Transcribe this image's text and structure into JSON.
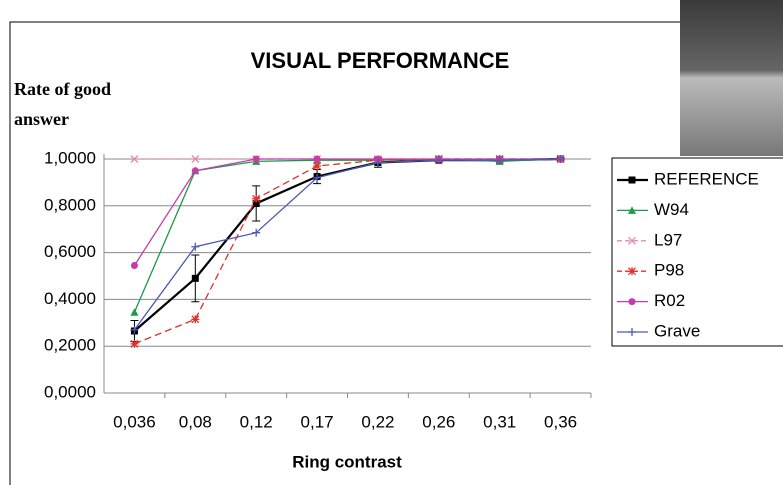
{
  "chart_data": {
    "type": "line",
    "title": "VISUAL PERFORMANCE",
    "y_label": "Rate of good answer",
    "x_label": "Ring contrast",
    "categories": [
      "0,036",
      "0,08",
      "0,12",
      "0,17",
      "0,22",
      "0,26",
      "0,31",
      "0,36"
    ],
    "ylim": [
      0,
      1
    ],
    "yticks": [
      {
        "value": 0,
        "label": "0,0000"
      },
      {
        "value": 0.2,
        "label": "0,2000"
      },
      {
        "value": 0.4,
        "label": "0,4000"
      },
      {
        "value": 0.6,
        "label": "0,6000"
      },
      {
        "value": 0.8,
        "label": "0,8000"
      },
      {
        "value": 1,
        "label": "1,0000"
      }
    ],
    "grid": true,
    "legend": "right",
    "series": [
      {
        "name": "REFERENCE",
        "color": "#000000",
        "marker": "square",
        "dash": false,
        "values": [
          0.265,
          0.49,
          0.81,
          0.925,
          0.985,
          0.995,
          0.995,
          1.0
        ],
        "errors": [
          0.045,
          0.1,
          0.075,
          0.03,
          0.02,
          0.005,
          0.005,
          0.005
        ]
      },
      {
        "name": "W94",
        "color": "#1a9a4a",
        "marker": "triangle",
        "dash": false,
        "values": [
          0.345,
          0.95,
          0.99,
          0.995,
          0.995,
          1.0,
          0.99,
          1.0
        ]
      },
      {
        "name": "L97",
        "color": "#e48ab0",
        "marker": "x",
        "dash": true,
        "values": [
          1.0,
          1.0,
          1.0,
          1.0,
          1.0,
          1.0,
          1.0,
          1.0
        ]
      },
      {
        "name": "P98",
        "color": "#e0302a",
        "marker": "star",
        "dash": true,
        "values": [
          0.21,
          0.315,
          0.83,
          0.97,
          0.995,
          1.0,
          1.0,
          1.0
        ]
      },
      {
        "name": "R02",
        "color": "#c83ca8",
        "marker": "circle",
        "dash": false,
        "values": [
          0.545,
          0.95,
          1.0,
          1.0,
          1.0,
          1.0,
          1.0,
          1.0
        ]
      },
      {
        "name": "Grave",
        "color": "#4a5ab8",
        "marker": "plus",
        "dash": false,
        "values": [
          0.27,
          0.625,
          0.685,
          0.92,
          0.985,
          0.995,
          0.995,
          1.0
        ]
      }
    ]
  }
}
